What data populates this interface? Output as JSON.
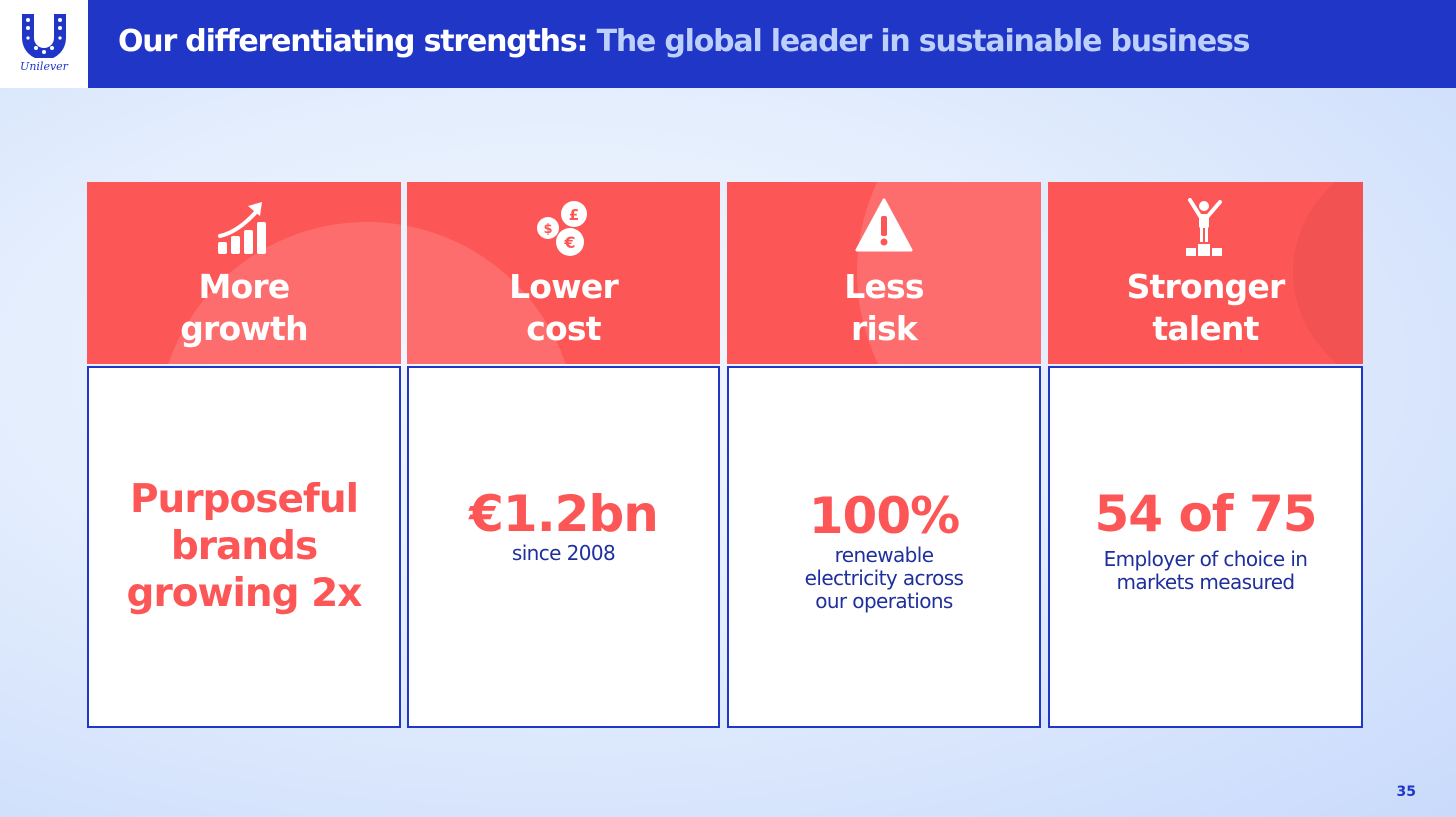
{
  "header": {
    "logo_text": "Unilever",
    "title": "Our differentiating strengths:",
    "subtitle": "The global leader in sustainable business"
  },
  "colors": {
    "brand_blue": "#1f36c7",
    "coral": "#fd5656",
    "navy_text": "#1f2f9c",
    "background": "#e3edfd"
  },
  "cards": [
    {
      "icon": "growth-chart-icon",
      "heading": [
        "More",
        "growth"
      ],
      "stat": [
        "Purposeful",
        "brands",
        "growing 2x"
      ],
      "desc": []
    },
    {
      "icon": "currency-coins-icon",
      "heading": [
        "Lower",
        "cost"
      ],
      "stat": [
        "€1.2bn"
      ],
      "desc": [
        "since 2008"
      ]
    },
    {
      "icon": "warning-icon",
      "heading": [
        "Less",
        "risk"
      ],
      "stat": [
        "100%"
      ],
      "desc": [
        "renewable",
        "electricity across",
        "our operations"
      ]
    },
    {
      "icon": "person-podium-icon",
      "heading": [
        "Stronger",
        "talent"
      ],
      "stat": [
        "54 of 75"
      ],
      "desc": [
        "Employer of choice in",
        "markets measured"
      ]
    }
  ],
  "page_number": "35"
}
